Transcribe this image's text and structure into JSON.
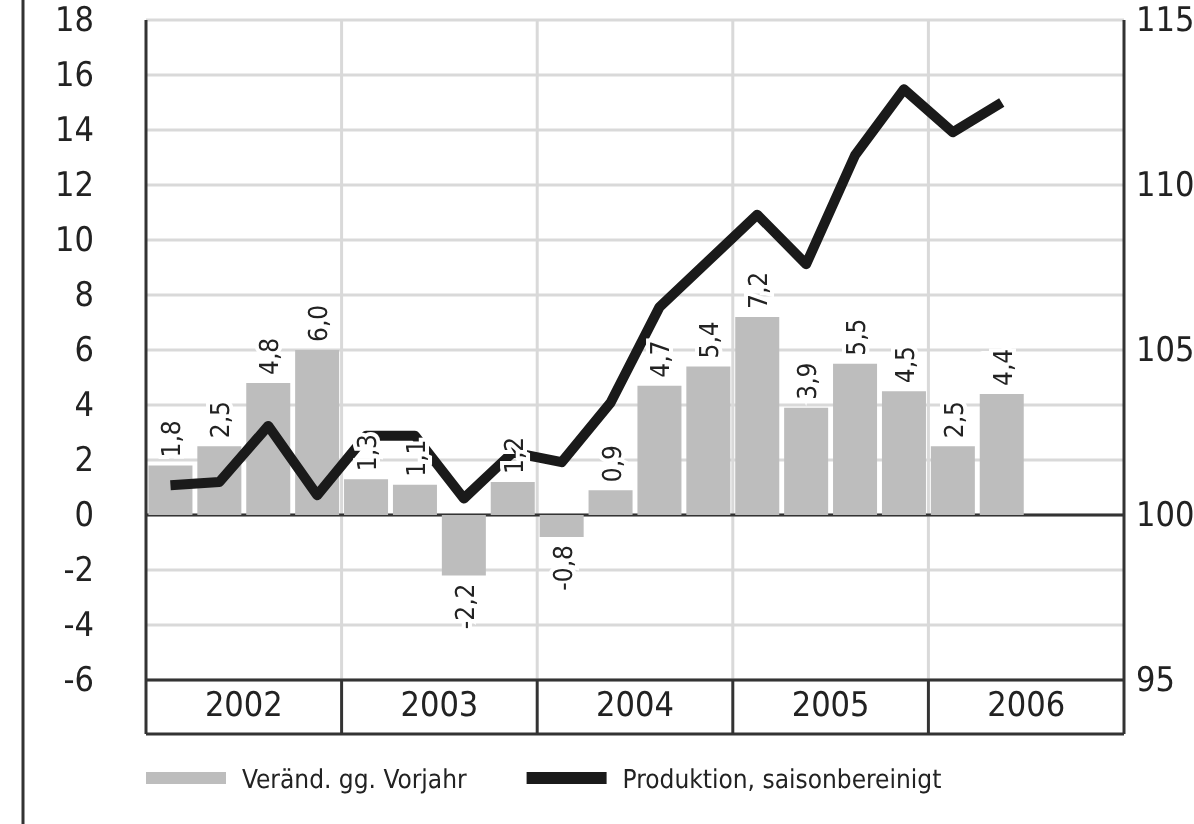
{
  "chart_data": {
    "type": "bar",
    "x": [
      2002.125,
      2002.375,
      2002.625,
      2002.875,
      2003.125,
      2003.375,
      2003.625,
      2003.875,
      2004.125,
      2004.375,
      2004.625,
      2004.875,
      2005.125,
      2005.375,
      2005.625,
      2005.875,
      2006.125,
      2006.375
    ],
    "xlim": [
      2002,
      2007
    ],
    "xticks": [
      {
        "value": 2002.5,
        "label": "2002"
      },
      {
        "value": 2003,
        "label": null
      },
      {
        "value": 2003.5,
        "label": "2003"
      },
      {
        "value": 2004,
        "label": null
      },
      {
        "value": 2004.5,
        "label": "2004"
      },
      {
        "value": 2005,
        "label": null
      },
      {
        "value": 2005.5,
        "label": "2005"
      },
      {
        "value": 2006,
        "label": null
      },
      {
        "value": 2006.5,
        "label": "2006"
      }
    ],
    "ylim": [
      -6,
      18
    ],
    "yticks": [
      -6,
      -4,
      -2,
      0,
      2,
      4,
      6,
      8,
      10,
      12,
      14,
      16,
      18
    ],
    "y2lim": [
      95,
      115
    ],
    "y2ticks": [
      95,
      100,
      105,
      110,
      115
    ],
    "series": [
      {
        "name": "Veränd. gg. Vorjahr",
        "color": "#bdbdbd",
        "values": [
          1.8,
          2.5,
          4.8,
          6.0,
          1.3,
          1.1,
          -2.2,
          1.2,
          -0.8,
          0.9,
          4.7,
          5.4,
          7.2,
          3.9,
          5.5,
          4.5,
          2.5,
          4.4
        ],
        "value_labels": [
          "1,8",
          "2,5",
          "4,8",
          "6,0",
          "1,3",
          "1,1",
          "-2,2",
          "1,2",
          "-0,8",
          "0,9",
          "4,7",
          "5,4",
          "7,2",
          "3,9",
          "5,5",
          "4,5",
          "2,5",
          "4,4"
        ]
      },
      {
        "name": "Produktion, saisonbereinigt",
        "type": "line",
        "axis": "y2",
        "color": "#1a1a1a",
        "values": [
          100.9,
          101.0,
          102.7,
          100.6,
          102.4,
          102.4,
          100.5,
          101.9,
          101.6,
          103.4,
          106.3,
          107.7,
          109.1,
          107.6,
          110.9,
          112.9,
          111.6,
          112.5
        ]
      }
    ],
    "grid": true,
    "legend": "bottom",
    "marker": "none",
    "line_style": "solid"
  }
}
